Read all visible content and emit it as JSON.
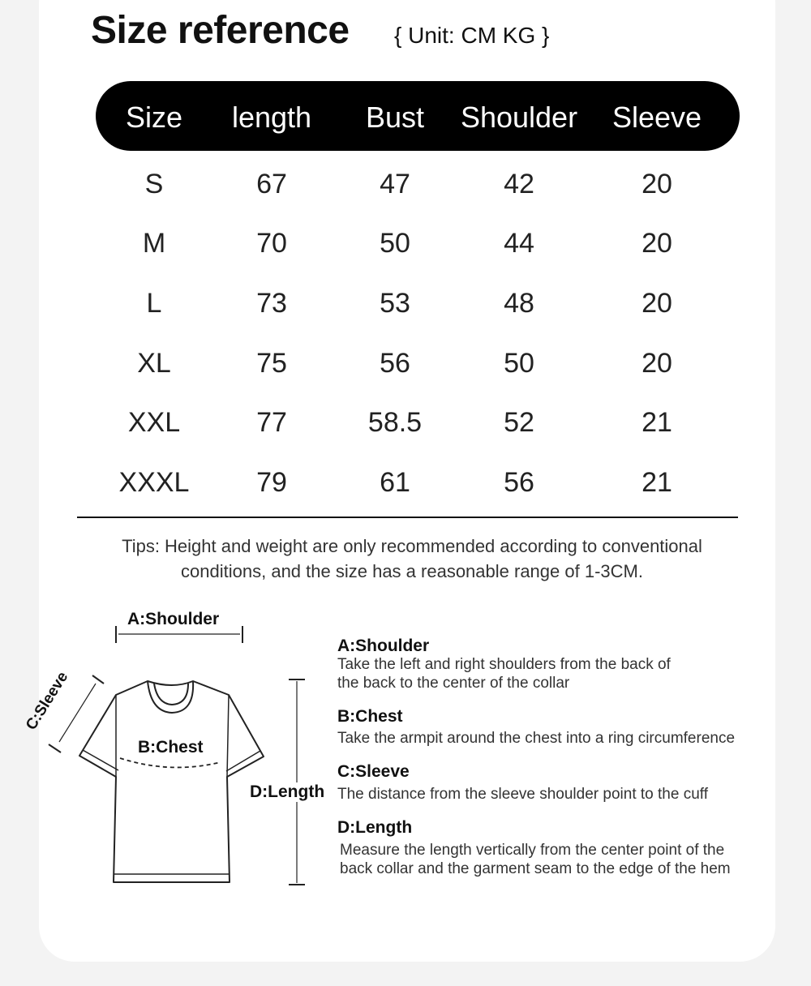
{
  "title": "Size reference",
  "unit": "{ Unit: CM KG }",
  "table": {
    "headers": [
      "Size",
      "length",
      "Bust",
      "Shoulder",
      "Sleeve"
    ],
    "rows": [
      [
        "S",
        "67",
        "47",
        "42",
        "20"
      ],
      [
        "M",
        "70",
        "50",
        "44",
        "20"
      ],
      [
        "L",
        "73",
        "53",
        "48",
        "20"
      ],
      [
        "XL",
        "75",
        "56",
        "50",
        "20"
      ],
      [
        "XXL",
        "77",
        "58.5",
        "52",
        "21"
      ],
      [
        "XXXL",
        "79",
        "61",
        "56",
        "21"
      ]
    ]
  },
  "tips": {
    "line1": "Tips: Height and weight are only recommended according to conventional",
    "line2": "conditions, and the size has a reasonable range of 1-3CM."
  },
  "diagram": {
    "shoulder_label": "A:Shoulder",
    "sleeve_label": "C:Sleeve",
    "chest_label": "B:Chest",
    "length_label": "D:Length"
  },
  "descriptions": [
    {
      "heading": "A:Shoulder",
      "lines": [
        "Take the left and right shoulders from the back of",
        "the back to the center of the collar"
      ]
    },
    {
      "heading": "B:Chest",
      "lines": [
        "Take the armpit around the chest into a ring circumference"
      ]
    },
    {
      "heading": "C:Sleeve",
      "lines": [
        "The distance from the sleeve shoulder point to the cuff"
      ]
    },
    {
      "heading": "D:Length",
      "lines": [
        "Measure the length vertically from the center point of the",
        "back collar and the garment seam to the edge of the hem"
      ]
    }
  ]
}
